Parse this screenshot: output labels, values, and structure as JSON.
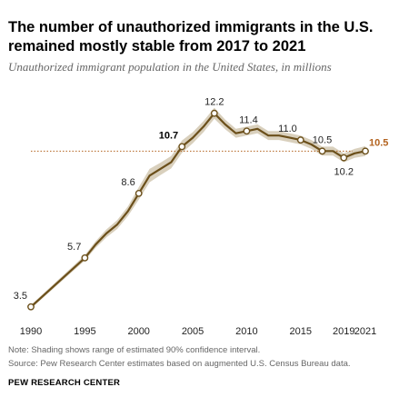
{
  "header": {
    "title": "The number of unauthorized immigrants in the U.S. remained mostly stable from 2017 to 2021",
    "subtitle": "Unauthorized immigrant population in the United States, in millions"
  },
  "footer": {
    "note": "Note: Shading shows range of estimated 90% confidence interval.",
    "source": "Source: Pew Research Center estimates based on augmented U.S. Census Bureau data.",
    "org": "PEW RESEARCH CENTER"
  },
  "colors": {
    "line": "#6b4f1a",
    "band": "#d9d0bd",
    "reference": "#b3631f",
    "highlight": "#b3631f"
  },
  "chart_data": {
    "type": "line",
    "title": "The number of unauthorized immigrants in the U.S. remained mostly stable from 2017 to 2021",
    "ylabel": "",
    "xlabel": "",
    "xlim": [
      1990,
      2021
    ],
    "ylim": [
      3.0,
      12.8
    ],
    "grid": false,
    "x_ticks": [
      "1990",
      "1995",
      "2000",
      "2005",
      "2010",
      "2015",
      "2019",
      "2021"
    ],
    "x_tick_values": [
      1990,
      1995,
      2000,
      2005,
      2010,
      2015,
      2019,
      2021
    ],
    "reference_line": {
      "value": 10.5
    },
    "series": [
      {
        "x": [
          1990,
          1995,
          1996,
          1997,
          1998,
          1999,
          2000,
          2001,
          2002,
          2003,
          2004,
          2005,
          2006,
          2007,
          2008,
          2009,
          2010,
          2011,
          2012,
          2013,
          2014,
          2015,
          2016,
          2017,
          2018,
          2019,
          2020,
          2021
        ],
        "y": [
          3.5,
          5.7,
          6.3,
          6.8,
          7.2,
          7.8,
          8.6,
          9.4,
          9.7,
          10.0,
          10.7,
          11.1,
          11.6,
          12.2,
          11.7,
          11.3,
          11.4,
          11.5,
          11.2,
          11.2,
          11.1,
          11.0,
          10.8,
          10.5,
          10.5,
          10.2,
          10.4,
          10.5
        ],
        "band_half_width": [
          0.08,
          0.12,
          0.15,
          0.18,
          0.2,
          0.22,
          0.28,
          0.3,
          0.28,
          0.28,
          0.28,
          0.25,
          0.25,
          0.25,
          0.22,
          0.2,
          0.2,
          0.2,
          0.2,
          0.2,
          0.2,
          0.2,
          0.2,
          0.2,
          0.2,
          0.2,
          0.2,
          0.22
        ]
      }
    ],
    "markers": [
      {
        "x": 1990,
        "y": 3.5,
        "label": "3.5",
        "style": "normal",
        "pos": "above-left"
      },
      {
        "x": 1995,
        "y": 5.7,
        "label": "5.7",
        "style": "normal",
        "pos": "above-left"
      },
      {
        "x": 2000,
        "y": 8.6,
        "label": "8.6",
        "style": "normal",
        "pos": "above-left"
      },
      {
        "x": 2004,
        "y": 10.7,
        "label": "10.7",
        "style": "bold",
        "pos": "above-left"
      },
      {
        "x": 2007,
        "y": 12.2,
        "label": "12.2",
        "style": "normal",
        "pos": "above"
      },
      {
        "x": 2010,
        "y": 11.4,
        "label": "11.4",
        "style": "normal",
        "pos": "above-right"
      },
      {
        "x": 2015,
        "y": 11.0,
        "label": "11.0",
        "style": "normal",
        "pos": "above-left"
      },
      {
        "x": 2017,
        "y": 10.5,
        "label": "10.5",
        "style": "normal",
        "pos": "above"
      },
      {
        "x": 2019,
        "y": 10.2,
        "label": "10.2",
        "style": "normal",
        "pos": "below"
      },
      {
        "x": 2021,
        "y": 10.5,
        "label": "10.5",
        "style": "accent",
        "pos": "right"
      }
    ]
  }
}
